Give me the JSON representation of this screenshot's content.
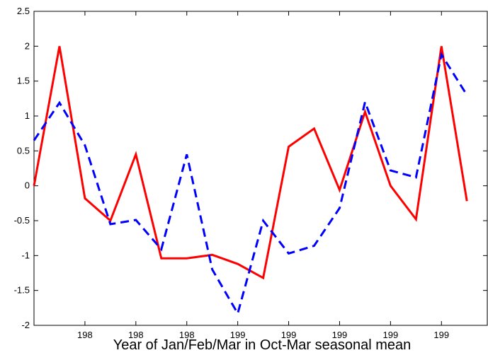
{
  "chart_data": {
    "type": "line",
    "x": [
      0,
      1,
      2,
      3,
      4,
      5,
      6,
      7,
      8,
      9,
      10,
      11,
      12,
      13,
      14,
      15,
      16,
      17
    ],
    "series": [
      {
        "color": "#ff0000",
        "dash": false,
        "values": [
          0,
          2,
          -0.18,
          -0.5,
          0.45,
          -1.04,
          -1.04,
          -0.99,
          -1.12,
          -1.32,
          0.56,
          0.82,
          -0.06,
          1.06,
          0,
          -0.48,
          2,
          -0.22
        ]
      },
      {
        "color": "#0000ff",
        "dash": true,
        "values": [
          0.65,
          1.19,
          0.58,
          -0.55,
          -0.49,
          -0.91,
          0.45,
          -1.2,
          -1.83,
          -0.5,
          -0.97,
          -0.86,
          -0.32,
          1.2,
          0.22,
          0.12,
          1.88,
          1.3
        ]
      }
    ],
    "xlim": [
      0,
      17.8
    ],
    "xticks": [
      {
        "value": 2,
        "label": "198"
      },
      {
        "value": 4,
        "label": "198"
      },
      {
        "value": 6,
        "label": "198"
      },
      {
        "value": 8,
        "label": "199"
      },
      {
        "value": 10,
        "label": "199"
      },
      {
        "value": 12,
        "label": "199"
      },
      {
        "value": 14,
        "label": "199"
      },
      {
        "value": 16,
        "label": "199"
      }
    ],
    "ylim": [
      -2,
      2.5
    ],
    "yticks": [
      -2,
      -1.5,
      -1,
      -0.5,
      0,
      0.5,
      1,
      1.5,
      2,
      2.5
    ],
    "xlabel": "Year of Jan/Feb/Mar in Oct-Mar seasonal mean"
  }
}
